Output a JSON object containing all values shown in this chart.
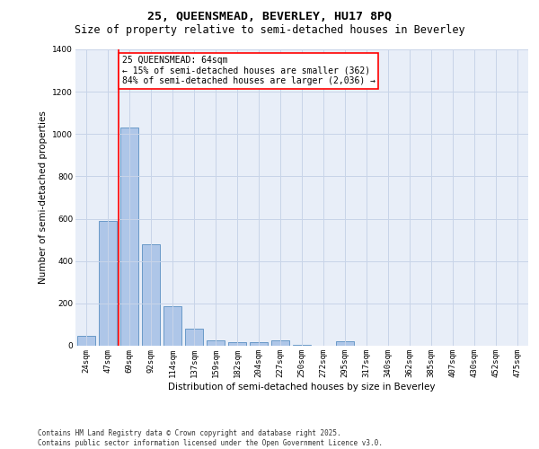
{
  "title_line1": "25, QUEENSMEAD, BEVERLEY, HU17 8PQ",
  "title_line2": "Size of property relative to semi-detached houses in Beverley",
  "xlabel": "Distribution of semi-detached houses by size in Beverley",
  "ylabel": "Number of semi-detached properties",
  "categories": [
    "24sqm",
    "47sqm",
    "69sqm",
    "92sqm",
    "114sqm",
    "137sqm",
    "159sqm",
    "182sqm",
    "204sqm",
    "227sqm",
    "250sqm",
    "272sqm",
    "295sqm",
    "317sqm",
    "340sqm",
    "362sqm",
    "385sqm",
    "407sqm",
    "430sqm",
    "452sqm",
    "475sqm"
  ],
  "values": [
    45,
    590,
    1030,
    480,
    185,
    80,
    25,
    15,
    15,
    25,
    5,
    0,
    20,
    0,
    0,
    0,
    0,
    0,
    0,
    0,
    0
  ],
  "bar_color": "#aec6e8",
  "bar_edge_color": "#5a8fc2",
  "vline_color": "red",
  "annotation_text": "25 QUEENSMEAD: 64sqm\n← 15% of semi-detached houses are smaller (362)\n84% of semi-detached houses are larger (2,036) →",
  "annotation_box_color": "white",
  "annotation_box_edge": "red",
  "ylim": [
    0,
    1400
  ],
  "yticks": [
    0,
    200,
    400,
    600,
    800,
    1000,
    1200,
    1400
  ],
  "grid_color": "#c8d4e8",
  "bg_color": "#e8eef8",
  "footer_line1": "Contains HM Land Registry data © Crown copyright and database right 2025.",
  "footer_line2": "Contains public sector information licensed under the Open Government Licence v3.0.",
  "title_fontsize": 9.5,
  "subtitle_fontsize": 8.5,
  "axis_label_fontsize": 7.5,
  "tick_fontsize": 6.5,
  "annotation_fontsize": 7,
  "footer_fontsize": 5.5,
  "vline_bar_index": 2
}
